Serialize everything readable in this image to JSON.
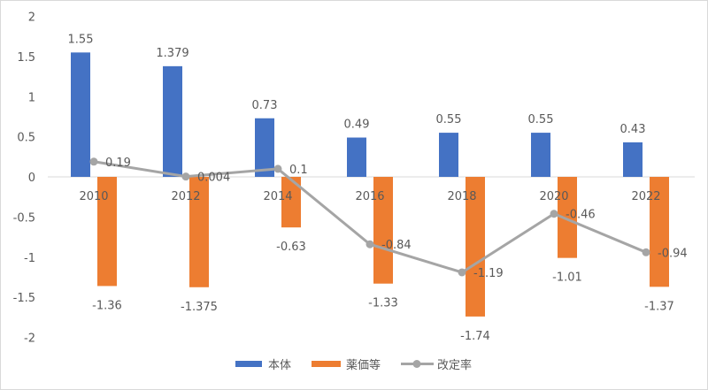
{
  "chart_data": {
    "type": "bar+line",
    "categories": [
      "2010",
      "2012",
      "2014",
      "2016",
      "2018",
      "2020",
      "2022"
    ],
    "series": [
      {
        "name": "本体",
        "type": "bar",
        "color": "#4472C4",
        "values": [
          1.55,
          1.379,
          0.73,
          0.49,
          0.55,
          0.55,
          0.43
        ],
        "labels": [
          "1.55",
          "1.379",
          "0.73",
          "0.49",
          "0.55",
          "0.55",
          "0.43"
        ]
      },
      {
        "name": "薬価等",
        "type": "bar",
        "color": "#ED7D31",
        "values": [
          -1.36,
          -1.375,
          -0.63,
          -1.33,
          -1.74,
          -1.01,
          -1.37
        ],
        "labels": [
          "-1.36",
          "-1.375",
          "-0.63",
          "-1.33",
          "-1.74",
          "-1.01",
          "-1.37"
        ]
      },
      {
        "name": "改定率",
        "type": "line",
        "color": "#A5A5A5",
        "values": [
          0.19,
          0.004,
          0.1,
          -0.84,
          -1.19,
          -0.46,
          -0.94
        ],
        "labels": [
          "0.19",
          "0.004",
          "0.1",
          "-0.84",
          "-1.19",
          "-0.46",
          "-0.94"
        ]
      }
    ],
    "ylim": [
      -2,
      2
    ],
    "yticks": [
      "2",
      "1.5",
      "1",
      "0.5",
      "0",
      "-0.5",
      "-1",
      "-1.5",
      "-2"
    ],
    "grid": false,
    "legend": "bottom"
  }
}
